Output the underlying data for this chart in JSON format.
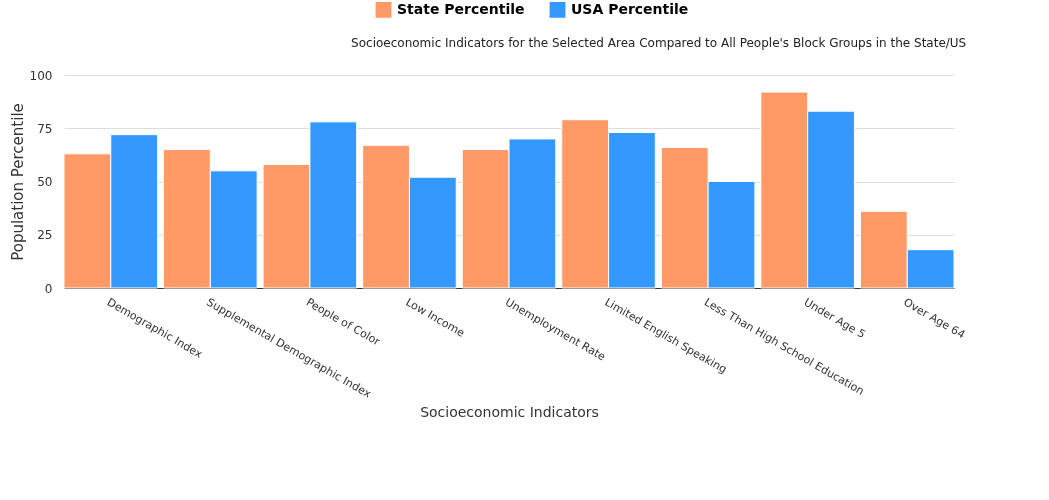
{
  "chart_data": {
    "type": "bar",
    "title": "Socioeconomic Indicators for the Selected Area Compared to All People's Block Groups in the State/US",
    "xlabel": "Socioeconomic Indicators",
    "ylabel": "Population Percentile",
    "categories": [
      "Demographic Index",
      "Supplemental Demographic Index",
      "People of Color",
      "Low Income",
      "Unemployment Rate",
      "Limited English Speaking",
      "Less Than High School Education",
      "Under Age 5",
      "Over Age 64"
    ],
    "series": [
      {
        "name": "State Percentile",
        "color": "#ff9966",
        "values": [
          63,
          65,
          58,
          67,
          65,
          79,
          66,
          92,
          36
        ]
      },
      {
        "name": "USA Percentile",
        "color": "#3399ff",
        "values": [
          72,
          55,
          78,
          52,
          70,
          73,
          50,
          83,
          18
        ]
      }
    ],
    "ylim": [
      0,
      100
    ],
    "yticks": [
      0,
      25,
      50,
      75,
      100
    ],
    "grid": "y",
    "legend": "top"
  }
}
